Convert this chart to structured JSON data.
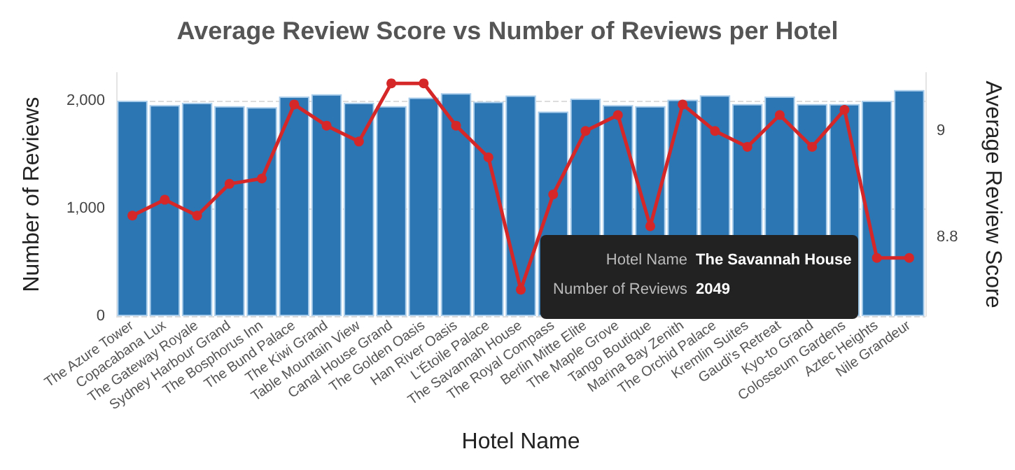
{
  "chart_data": {
    "type": "bar",
    "title": "Average Review Score vs Number of Reviews per Hotel",
    "xlabel": "Hotel Name",
    "ylabel": "Number of Reviews",
    "y2label": "Average Review Score",
    "categories": [
      "The Azure Tower",
      "Copacabana Lux",
      "The Gateway Royale",
      "Sydney Harbour Grand",
      "The Bosphorus Inn",
      "The Bund Palace",
      "The Kiwi Grand",
      "Table Mountain View",
      "Canal House Grand",
      "The Golden Oasis",
      "Han River Oasis",
      "L'Étoile Palace",
      "The Savannah House",
      "The Royal Compass",
      "Berlin Mitte Elite",
      "The Maple Grove",
      "Tango Boutique",
      "Marina Bay Zenith",
      "The Orchid Palace",
      "Kremlin Suites",
      "Gaudi's Retreat",
      "Kyo-to Grand",
      "Colosseum Gardens",
      "Aztec Heights",
      "Nile Grandeur"
    ],
    "series": [
      {
        "color": "#2c76b4",
        "values": [
          2000,
          1960,
          1980,
          1950,
          1940,
          2040,
          2060,
          1980,
          1950,
          2030,
          2070,
          1990,
          2049,
          1900,
          2020,
          1960,
          1950,
          2010,
          2050,
          1970,
          2040,
          1970,
          1970,
          2000,
          2100
        ]
      },
      {
        "type": "line",
        "axis": "y2",
        "color": "#d62728",
        "values": [
          8.84,
          8.87,
          8.84,
          8.9,
          8.91,
          9.05,
          9.01,
          8.98,
          9.09,
          9.09,
          9.01,
          8.95,
          8.7,
          8.88,
          9.0,
          9.03,
          8.82,
          9.05,
          9.0,
          8.97,
          9.03,
          8.97,
          9.04,
          8.76,
          8.76
        ]
      }
    ],
    "ylim": [
      0,
      2260
    ],
    "yticks": [
      0,
      {
        "value": 1000,
        "label": "1,000"
      },
      {
        "value": 2000,
        "label": "2,000"
      }
    ],
    "y2lim": [
      8.65,
      9.11
    ],
    "y2ticks": [
      8.8,
      9
    ],
    "grid": "y",
    "marker": "circle",
    "line_style": "solid",
    "annotations": [
      "Hotel Name",
      "The Savannah House",
      "Number of Reviews",
      "2049"
    ]
  }
}
